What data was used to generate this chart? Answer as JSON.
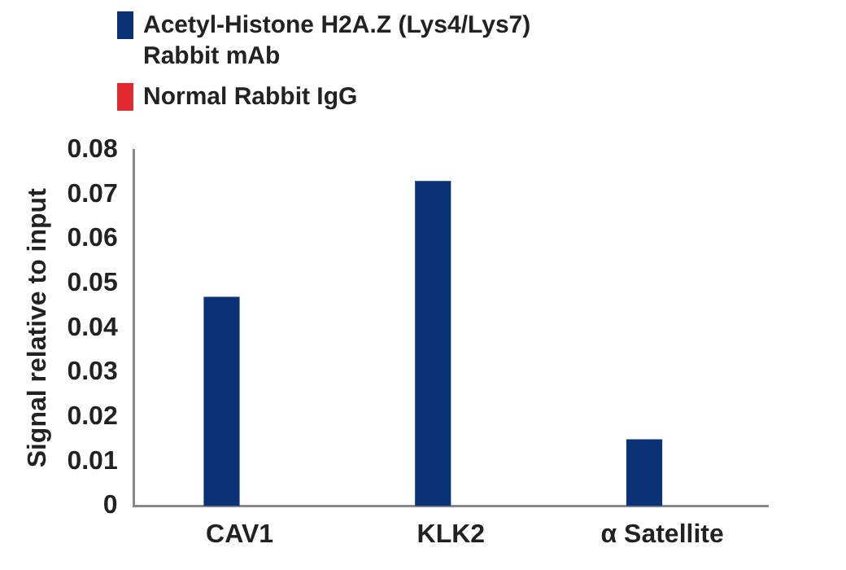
{
  "chart_data": {
    "type": "bar",
    "ylabel": "Signal relative to input",
    "categories": [
      "CAV1",
      "KLK2",
      "α Satellite"
    ],
    "series": [
      {
        "name": "Acetyl-Histone H2A.Z (Lys4/Lys7) Rabbit mAb",
        "color": "#0a3175",
        "values": [
          0.047,
          0.073,
          0.015
        ]
      },
      {
        "name": "Normal Rabbit IgG",
        "color": "#e0292e",
        "values": [
          0,
          0,
          0
        ]
      }
    ],
    "ylim": [
      0,
      0.08
    ],
    "yticks": [
      0,
      0.01,
      0.02,
      0.03,
      0.04,
      0.05,
      0.06,
      0.07,
      0.08
    ],
    "grid": false,
    "legend": "top left"
  }
}
